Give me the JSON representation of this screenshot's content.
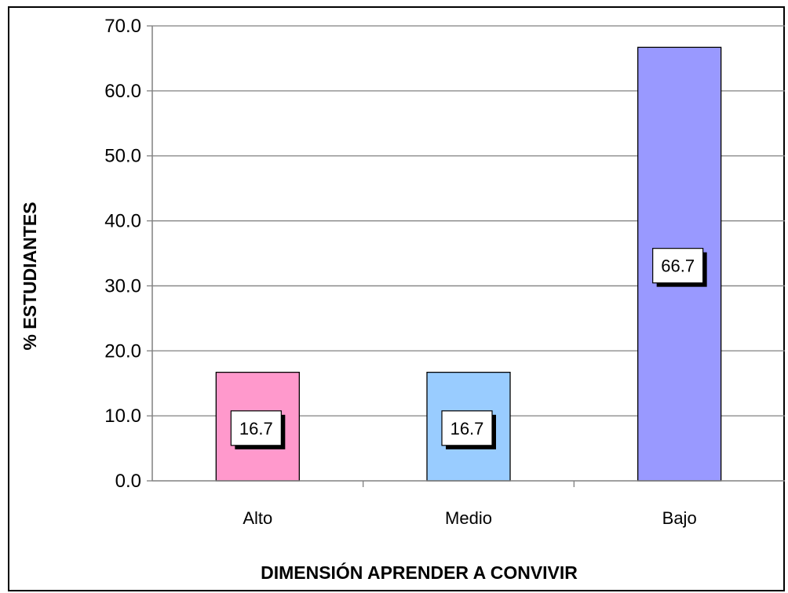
{
  "chart_data": {
    "type": "bar",
    "categories": [
      "Alto",
      "Medio",
      "Bajo"
    ],
    "values": [
      16.7,
      16.7,
      66.7
    ],
    "data_labels": [
      "16.7",
      "16.7",
      "66.7"
    ],
    "colors": [
      "#ff99cc",
      "#99ccff",
      "#9999ff"
    ],
    "xlabel": "DIMENSIÓN APRENDER A CONVIVIR",
    "ylabel": "% ESTUDIANTES",
    "ylim": [
      0,
      70
    ],
    "yticks": [
      "0.0",
      "10.0",
      "20.0",
      "30.0",
      "40.0",
      "50.0",
      "60.0",
      "70.0"
    ],
    "grid": true,
    "legend": "none"
  }
}
